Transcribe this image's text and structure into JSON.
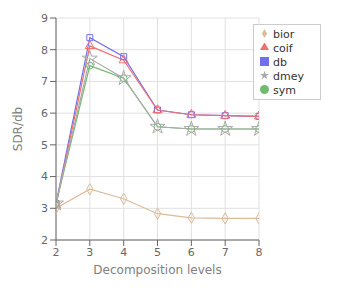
{
  "chart_data": {
    "type": "line",
    "x": [
      2,
      3,
      4,
      5,
      6,
      7,
      8
    ],
    "series": [
      {
        "name": "db",
        "color": "#7070ee",
        "marker": "square",
        "values": [
          3.15,
          8.38,
          7.78,
          6.1,
          5.95,
          5.92,
          5.9
        ]
      },
      {
        "name": "coif",
        "color": "#ee7070",
        "marker": "triangle",
        "values": [
          3.1,
          8.12,
          7.67,
          6.1,
          5.95,
          5.92,
          5.9
        ]
      },
      {
        "name": "sym",
        "color": "#70bb70",
        "marker": "circle",
        "values": [
          3.15,
          7.5,
          7.1,
          5.57,
          5.5,
          5.5,
          5.5
        ]
      },
      {
        "name": "dmey",
        "color": "#aaaaaa",
        "marker": "star",
        "values": [
          3.15,
          7.72,
          7.1,
          5.57,
          5.5,
          5.5,
          5.5
        ]
      },
      {
        "name": "bior",
        "color": "#ddbb99",
        "marker": "diamond",
        "values": [
          3.0,
          3.6,
          3.3,
          2.83,
          2.7,
          2.68,
          2.68
        ]
      }
    ],
    "xlabel": "Decomposition levels",
    "ylabel": "SDR/db",
    "xlim": [
      2,
      8
    ],
    "ylim": [
      2,
      9
    ],
    "xticks": [
      2,
      3,
      4,
      5,
      6,
      7,
      8
    ],
    "yticks": [
      2,
      3,
      4,
      5,
      6,
      7,
      8,
      9
    ],
    "grid": true,
    "legend": "upper right"
  }
}
